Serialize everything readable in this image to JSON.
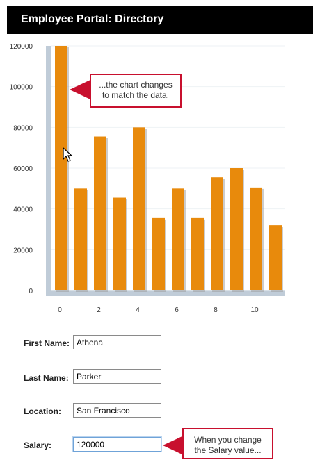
{
  "header": {
    "title": "Employee Portal: Directory"
  },
  "chart_data": {
    "type": "bar",
    "categories": [
      0,
      1,
      2,
      3,
      4,
      5,
      6,
      7,
      8,
      9,
      10,
      11
    ],
    "values": [
      120000,
      50000,
      75500,
      45500,
      80000,
      35500,
      50000,
      35500,
      55500,
      60000,
      50500,
      32000
    ],
    "x_tick_labels": [
      "0",
      "2",
      "4",
      "6",
      "8",
      "10"
    ],
    "y_tick_labels": [
      "0",
      "20000",
      "40000",
      "60000",
      "80000",
      "100000",
      "120000"
    ],
    "ylim": [
      0,
      120000
    ],
    "bar_color": "#e88a0c",
    "axis_color": "#c0ccd8"
  },
  "callouts": {
    "chart": "...the chart changes\nto match the data.",
    "salary": "When you change\nthe Salary value..."
  },
  "form": {
    "first_name": {
      "label": "First Name:",
      "value": "Athena"
    },
    "last_name": {
      "label": "Last Name:",
      "value": "Parker"
    },
    "location": {
      "label": "Location:",
      "value": "San Francisco"
    },
    "salary": {
      "label": "Salary:",
      "value": "120000"
    }
  },
  "colors": {
    "accent": "#c8102e",
    "header_bg": "#000000"
  }
}
